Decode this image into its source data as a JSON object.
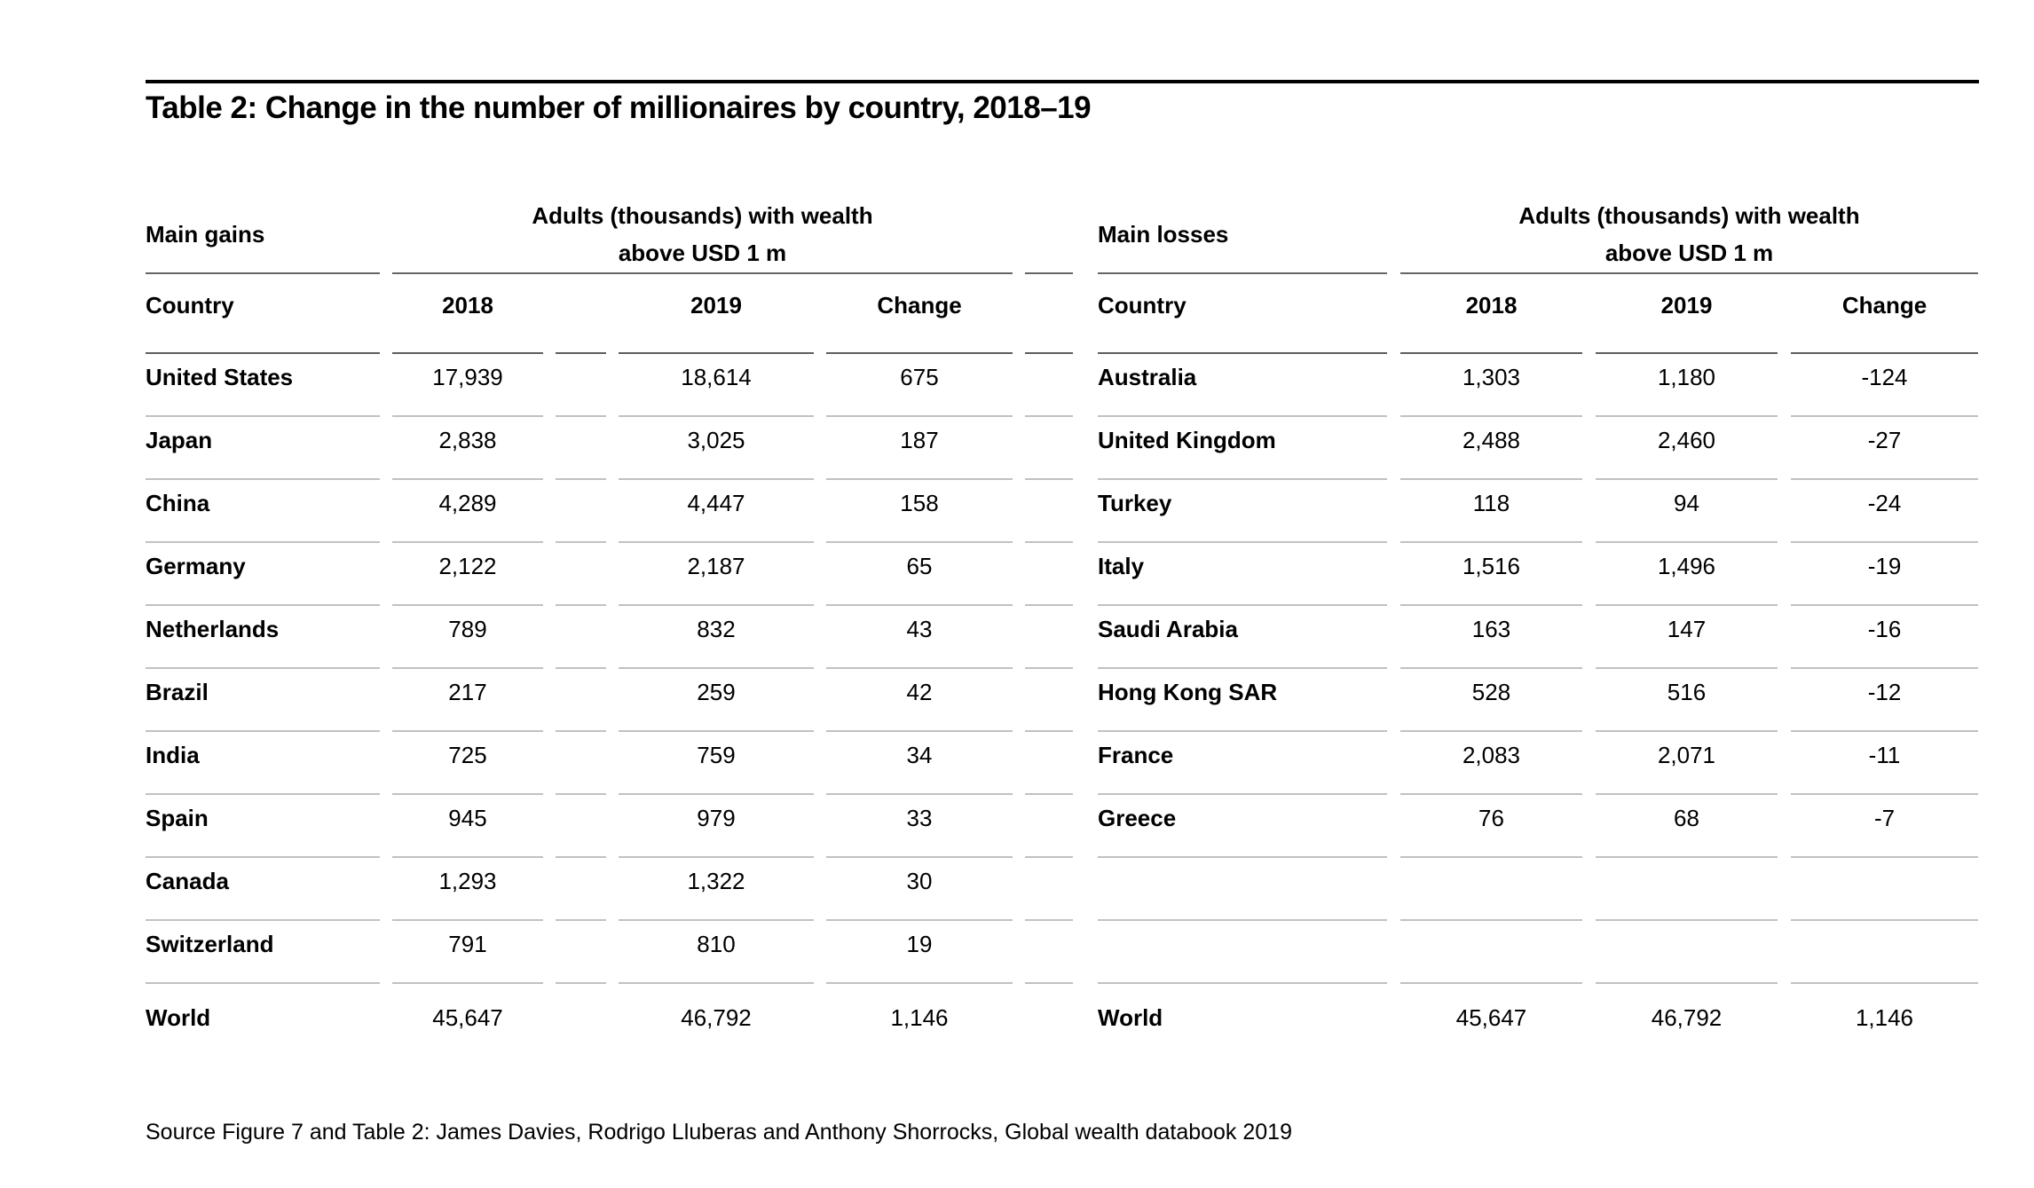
{
  "page": {
    "title": "Table 2: Change in the number of millionaires by country, 2018–19",
    "source": "Source Figure 7 and Table 2: James Davies, Rodrigo Lluberas and Anthony Shorrocks, Global wealth databook 2019"
  },
  "colors": {
    "background": "#ffffff",
    "text": "#000000",
    "top_rule": "#000000",
    "header_separator": "#666666",
    "row_separator": "#c1c1c1"
  },
  "tables": {
    "gains": {
      "group_label": "Main gains",
      "group_header_line1": "Adults (thousands) with wealth",
      "group_header_line2": "above USD 1 m",
      "columns": {
        "country": "Country",
        "y2018": "2018",
        "y2019": "2019",
        "change": "Change"
      },
      "rows": [
        {
          "country": "United States",
          "y2018": "17,939",
          "y2019": "18,614",
          "change": "675"
        },
        {
          "country": "Japan",
          "y2018": "2,838",
          "y2019": "3,025",
          "change": "187"
        },
        {
          "country": "China",
          "y2018": "4,289",
          "y2019": "4,447",
          "change": "158"
        },
        {
          "country": "Germany",
          "y2018": "2,122",
          "y2019": "2,187",
          "change": "65"
        },
        {
          "country": "Netherlands",
          "y2018": "789",
          "y2019": "832",
          "change": "43"
        },
        {
          "country": "Brazil",
          "y2018": "217",
          "y2019": "259",
          "change": "42"
        },
        {
          "country": "India",
          "y2018": "725",
          "y2019": "759",
          "change": "34"
        },
        {
          "country": "Spain",
          "y2018": "945",
          "y2019": "979",
          "change": "33"
        },
        {
          "country": "Canada",
          "y2018": "1,293",
          "y2019": "1,322",
          "change": "30"
        },
        {
          "country": "Switzerland",
          "y2018": "791",
          "y2019": "810",
          "change": "19"
        }
      ],
      "total": {
        "country": "World",
        "y2018": "45,647",
        "y2019": "46,792",
        "change": "1,146"
      }
    },
    "losses": {
      "group_label": "Main losses",
      "group_header_line1": "Adults (thousands) with wealth",
      "group_header_line2": "above USD 1 m",
      "columns": {
        "country": "Country",
        "y2018": "2018",
        "y2019": "2019",
        "change": "Change"
      },
      "rows": [
        {
          "country": "Australia",
          "y2018": "1,303",
          "y2019": "1,180",
          "change": "-124"
        },
        {
          "country": "United Kingdom",
          "y2018": "2,488",
          "y2019": "2,460",
          "change": "-27"
        },
        {
          "country": "Turkey",
          "y2018": "118",
          "y2019": "94",
          "change": "-24"
        },
        {
          "country": "Italy",
          "y2018": "1,516",
          "y2019": "1,496",
          "change": "-19"
        },
        {
          "country": "Saudi Arabia",
          "y2018": "163",
          "y2019": "147",
          "change": "-16"
        },
        {
          "country": "Hong Kong SAR",
          "y2018": "528",
          "y2019": "516",
          "change": "-12"
        },
        {
          "country": "France",
          "y2018": "2,083",
          "y2019": "2,071",
          "change": "-11"
        },
        {
          "country": "Greece",
          "y2018": "76",
          "y2019": "68",
          "change": "-7"
        },
        {
          "country": "",
          "y2018": "",
          "y2019": "",
          "change": ""
        },
        {
          "country": "",
          "y2018": "",
          "y2019": "",
          "change": ""
        }
      ],
      "total": {
        "country": "World",
        "y2018": "45,647",
        "y2019": "46,792",
        "change": "1,146"
      }
    }
  }
}
